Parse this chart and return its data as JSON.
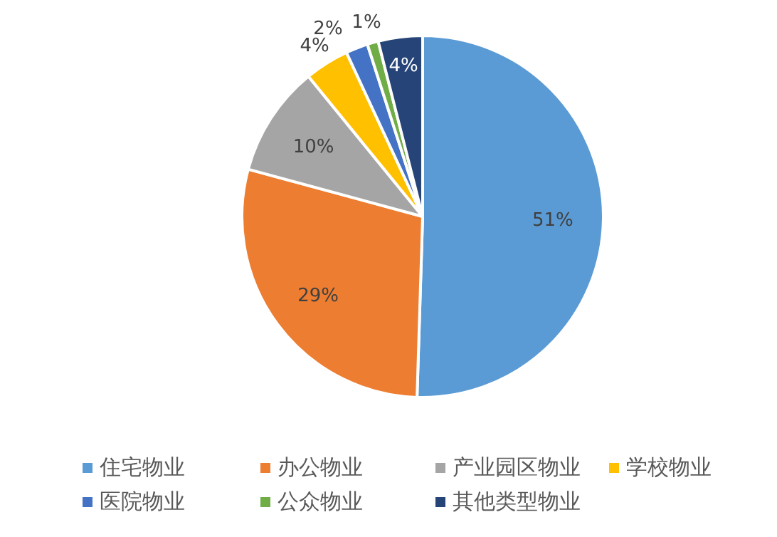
{
  "chart_data": {
    "type": "pie",
    "categories": [
      "住宅物业",
      "办公物业",
      "产业园区物业",
      "学校物业",
      "医院物业",
      "公众物业",
      "其他类型物业"
    ],
    "values": [
      51,
      29,
      10,
      4,
      2,
      1,
      4
    ],
    "value_labels": [
      "51%",
      "29%",
      "10%",
      "4%",
      "2%",
      "1%",
      "4%"
    ],
    "colors": [
      "#5b9bd5",
      "#ed7d31",
      "#a5a5a5",
      "#ffc000",
      "#4472c4",
      "#70ad47",
      "#264478"
    ],
    "legend": "bottom"
  }
}
